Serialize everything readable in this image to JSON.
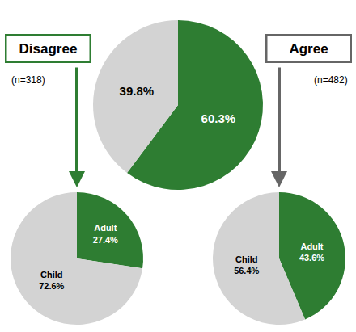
{
  "chart_data": [
    {
      "type": "pie",
      "values": [
        60.3,
        39.8
      ],
      "value_labels": [
        "60.3%",
        "39.8%"
      ],
      "colors": [
        "#2e7d32",
        "#d3d3d3"
      ]
    },
    {
      "type": "pie",
      "title": "Disagree",
      "categories": [
        "Adult",
        "Child"
      ],
      "values": [
        27.4,
        72.6
      ],
      "value_labels": [
        "27.4%",
        "72.6%"
      ],
      "colors": [
        "#2e7d32",
        "#d3d3d3"
      ],
      "color": "#2e7d32",
      "annotations": [
        "(n=318)"
      ]
    },
    {
      "type": "pie",
      "title": "Agree",
      "categories": [
        "Adult",
        "Child"
      ],
      "values": [
        43.6,
        56.4
      ],
      "value_labels": [
        "43.6%",
        "56.4%"
      ],
      "colors": [
        "#2e7d32",
        "#d3d3d3"
      ],
      "color": "#666666",
      "annotations": [
        "(n=482)"
      ]
    }
  ]
}
